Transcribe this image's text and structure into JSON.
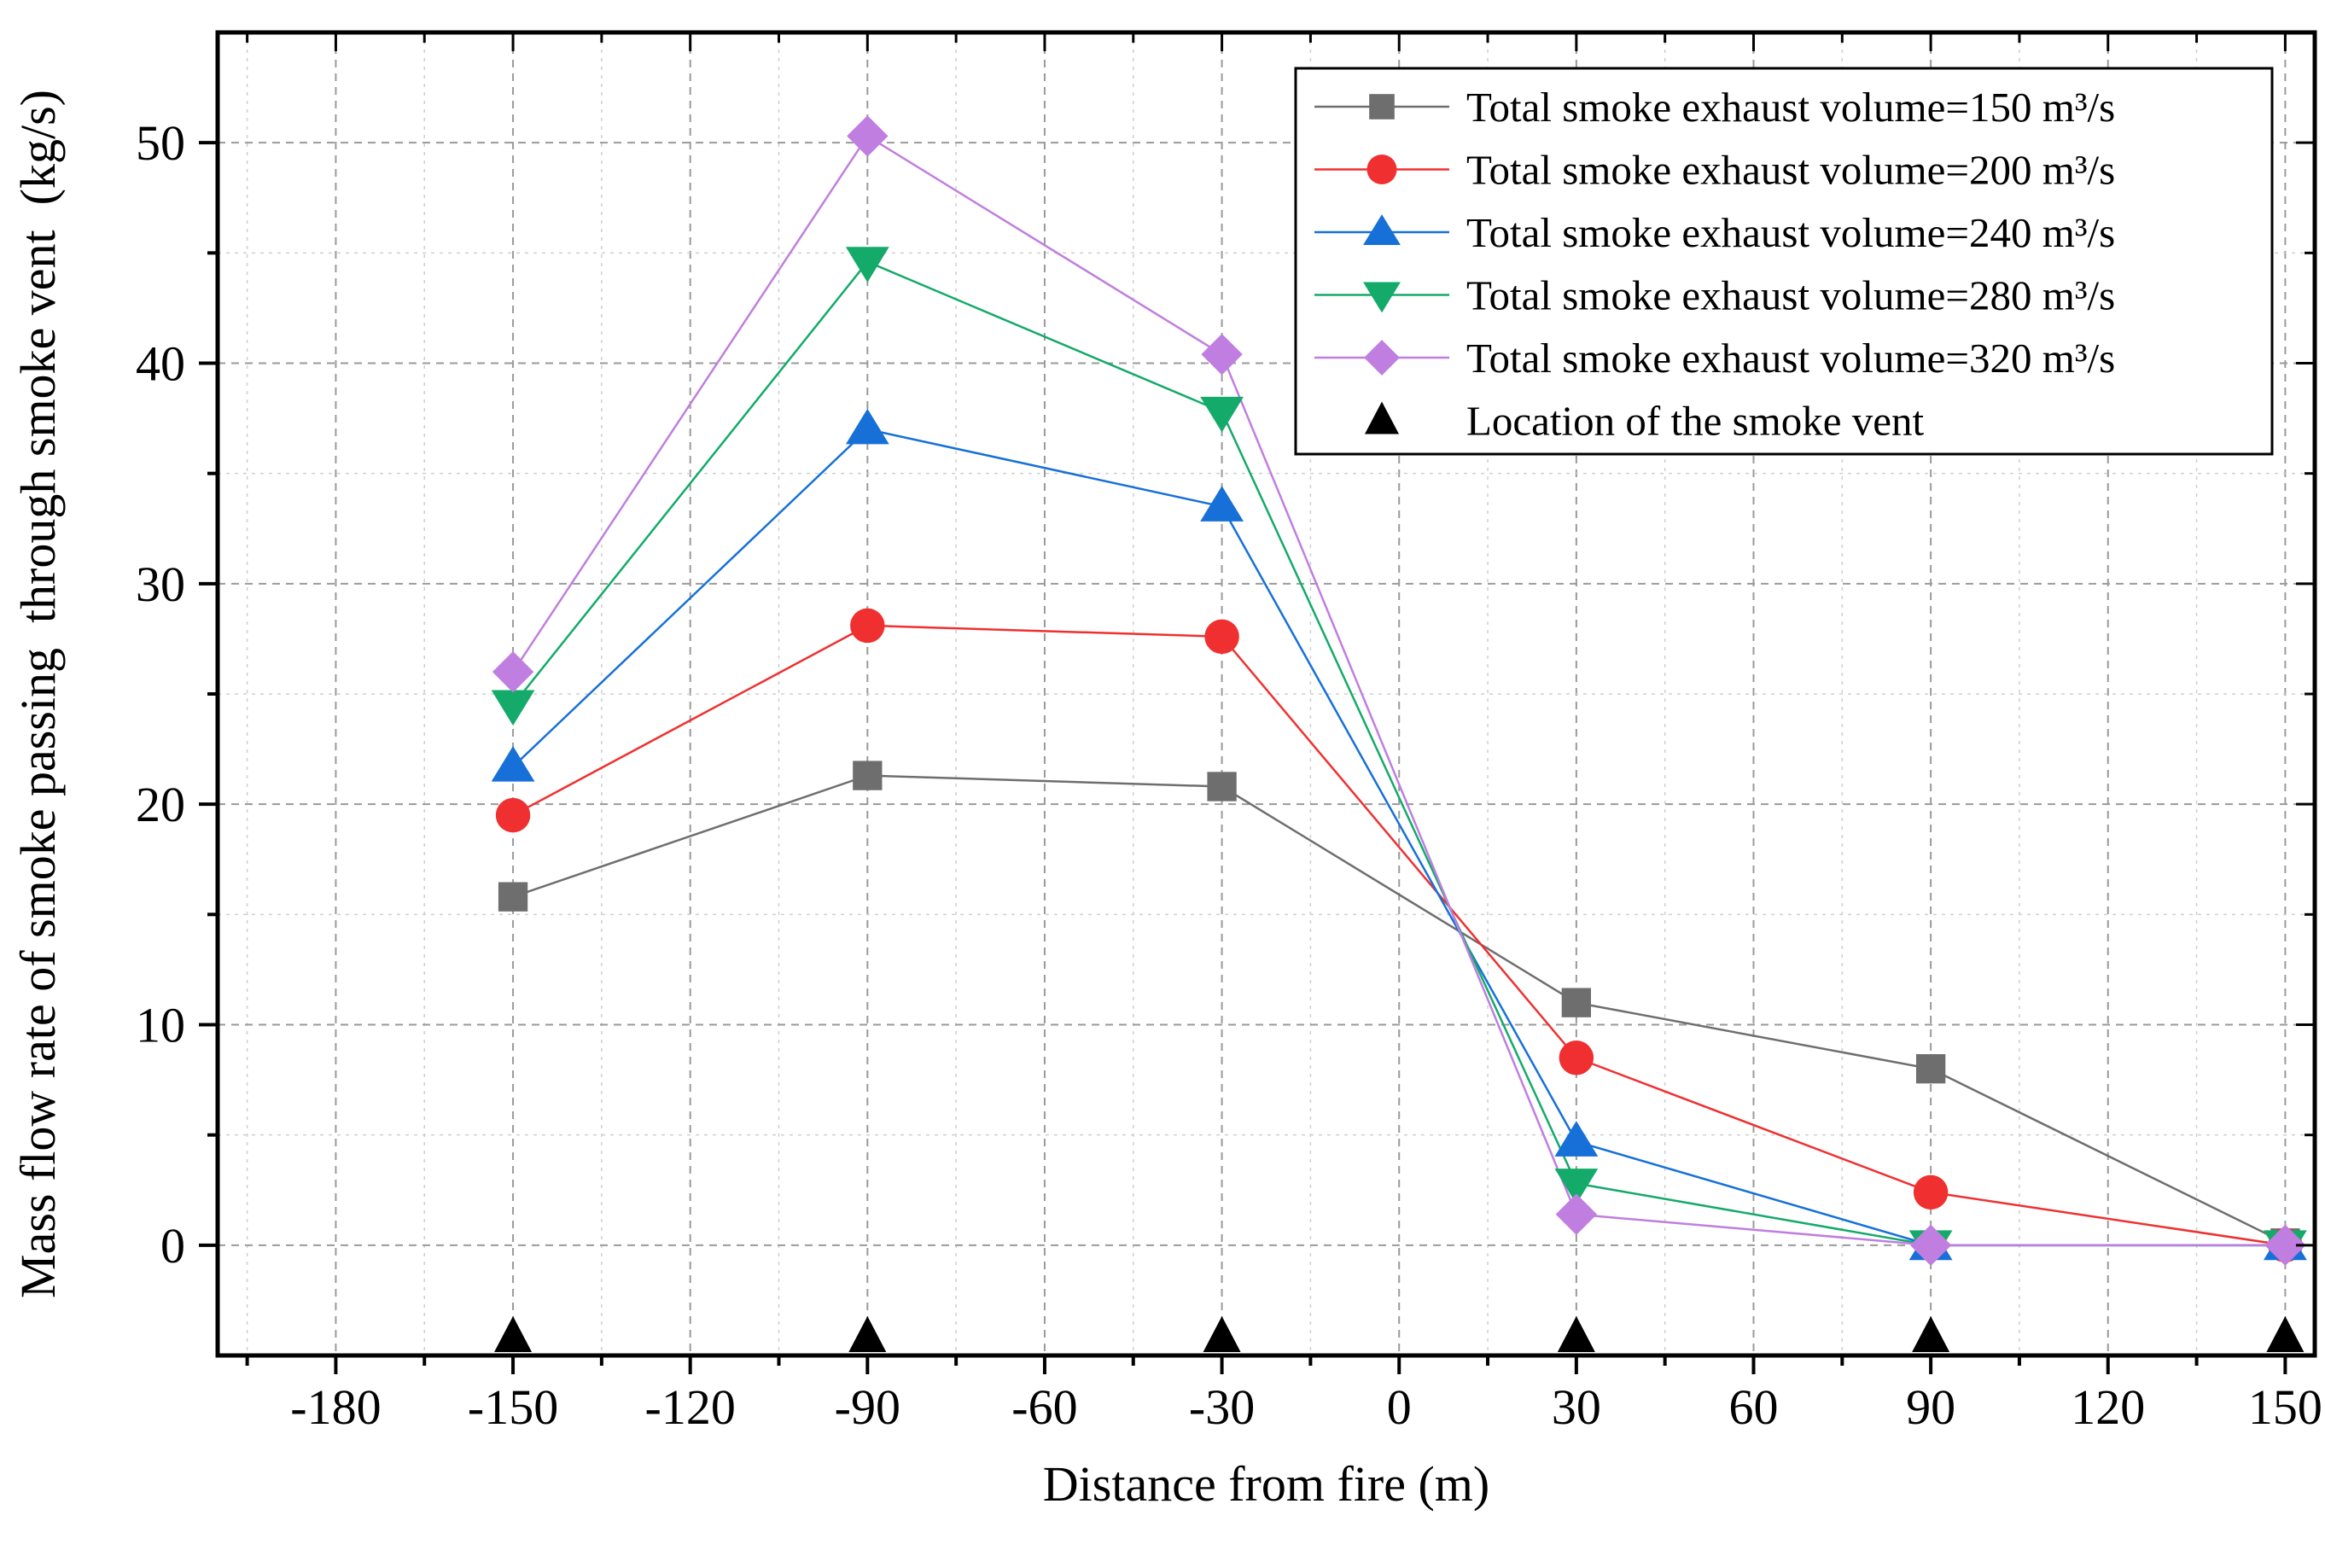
{
  "chart_data": {
    "type": "line",
    "title": "",
    "xlabel": "Distance from fire (m)",
    "ylabel": "Mass flow rate of smoke passing  through smoke vent  (kg/s)",
    "xlim": [
      -200,
      155
    ],
    "ylim": [
      -5,
      55
    ],
    "xticks": [
      -180,
      -150,
      -120,
      -90,
      -60,
      -30,
      0,
      30,
      60,
      90,
      120,
      150
    ],
    "xtick_labels": [
      "-180",
      "-150",
      "-120",
      "-90",
      "-60",
      "-30",
      "0",
      "30",
      "60",
      "90",
      "120",
      "150"
    ],
    "yticks": [
      0,
      10,
      20,
      30,
      40,
      50
    ],
    "ytick_labels": [
      "0",
      "10",
      "20",
      "30",
      "40",
      "50"
    ],
    "grid": true,
    "legend_position": "top-right",
    "x": [
      -150,
      -90,
      -30,
      30,
      90,
      150
    ],
    "series": [
      {
        "name": "Total smoke exhaust volume=150 m³/s",
        "marker": "square",
        "color": "#6e6e6e",
        "values": [
          15.8,
          21.3,
          20.8,
          11.0,
          8.0,
          0.1
        ]
      },
      {
        "name": "Total smoke exhaust volume=200 m³/s",
        "marker": "circle",
        "color": "#f03030",
        "values": [
          19.5,
          28.1,
          27.6,
          8.5,
          2.4,
          0.0
        ]
      },
      {
        "name": "Total smoke exhaust volume=240 m³/s",
        "marker": "triangle-up",
        "color": "#1670d8",
        "values": [
          21.7,
          37.0,
          33.5,
          4.7,
          0.0,
          0.0
        ]
      },
      {
        "name": "Total smoke exhaust volume=280 m³/s",
        "marker": "triangle-down",
        "color": "#14aa6a",
        "values": [
          24.5,
          44.6,
          37.8,
          2.8,
          0.0,
          0.0
        ]
      },
      {
        "name": "Total smoke exhaust volume=320 m³/s",
        "marker": "diamond",
        "color": "#c07ee0",
        "values": [
          26.0,
          50.3,
          40.4,
          1.4,
          0.0,
          0.0
        ]
      }
    ],
    "vent_locations": {
      "name": "Location of the smoke vent",
      "marker": "triangle-up",
      "color": "#000000",
      "x": [
        -150,
        -90,
        -30,
        30,
        90,
        150
      ]
    }
  }
}
